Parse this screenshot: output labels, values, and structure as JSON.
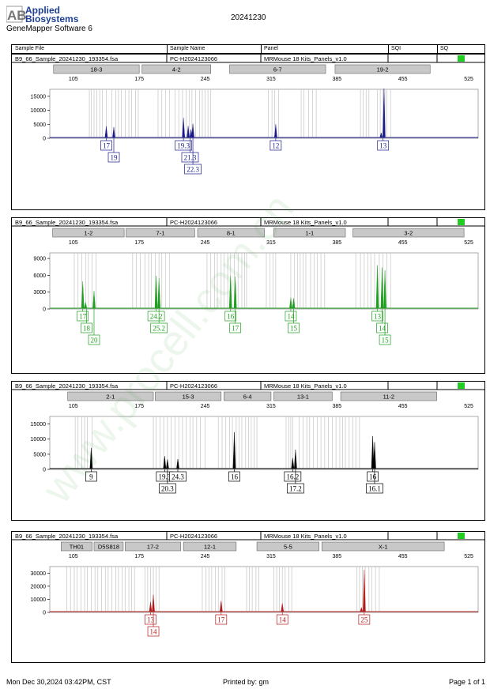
{
  "header": {
    "brand_line1": "Applied",
    "brand_line2": "Biosystems",
    "logo_mark": "AB",
    "software": "GeneMapper Software 6",
    "report_date": "20241230",
    "columns": [
      "Sample File",
      "Sample Name",
      "Panel",
      "SQI",
      "SQ"
    ]
  },
  "footer": {
    "printed_at": "Mon Dec 30,2024 03:42PM, CST",
    "printed_by": "Printed by: gm",
    "page": "Page 1 of 1"
  },
  "watermark": "www.procell.com.cn",
  "colors": {
    "blue": "#1a1a8c",
    "green": "#1e9e1e",
    "black": "#000000",
    "red": "#b31a1a",
    "quality": "#22cc22"
  },
  "chart_data": [
    {
      "type": "line",
      "color": "blue",
      "sample_file": "B9_66_Sample_20241230_193354.fsa",
      "sample_name": "PC-H2024123066",
      "panel": "MRMouse 18 Kits_Panels_v1.0",
      "xlim": [
        80,
        535
      ],
      "xticks": [
        105,
        175,
        245,
        315,
        385,
        455,
        525
      ],
      "ylim": [
        0,
        17500
      ],
      "yticks": [
        0,
        5000,
        10000,
        15000
      ],
      "markers": [
        {
          "label": "18-3",
          "start": 84,
          "end": 175
        },
        {
          "label": "4-2",
          "start": 178,
          "end": 251
        },
        {
          "label": "6-7",
          "start": 271,
          "end": 373
        },
        {
          "label": "19-2",
          "start": 383,
          "end": 484
        }
      ],
      "bins": [
        122,
        124,
        127,
        130,
        133,
        136,
        140,
        146,
        150,
        153,
        156,
        160,
        164,
        167,
        171,
        174,
        195,
        199,
        203,
        207,
        213,
        217,
        221,
        225,
        228,
        231,
        235,
        239,
        242,
        245,
        248,
        251,
        312,
        316,
        319,
        323,
        347,
        350,
        355,
        359,
        363,
        410,
        413,
        416,
        419,
        428,
        431,
        434,
        436,
        438,
        442
      ],
      "peaks": [
        {
          "x": 140,
          "y": 4300
        },
        {
          "x": 148,
          "y": 4000
        },
        {
          "x": 222,
          "y": 7300
        },
        {
          "x": 227,
          "y": 4400
        },
        {
          "x": 230,
          "y": 3200
        },
        {
          "x": 232,
          "y": 5200
        },
        {
          "x": 320,
          "y": 5000
        },
        {
          "x": 432,
          "y": 2000
        },
        {
          "x": 435,
          "y": 17800
        }
      ],
      "alleles": [
        {
          "label": "17",
          "x": 140,
          "row": 0
        },
        {
          "label": "19",
          "x": 148,
          "row": 1
        },
        {
          "label": "19.3",
          "x": 222,
          "row": 0
        },
        {
          "label": "21.3",
          "x": 229,
          "row": 1
        },
        {
          "label": "22.3",
          "x": 232,
          "row": 2
        },
        {
          "label": "12",
          "x": 320,
          "row": 0
        },
        {
          "label": "13",
          "x": 434,
          "row": 0
        }
      ]
    },
    {
      "type": "line",
      "color": "green",
      "sample_file": "B9_66_Sample_20241230_193354.fsa",
      "sample_name": "PC-H2024123066",
      "panel": "MRMouse 18 Kits_Panels_v1.0",
      "xlim": [
        80,
        535
      ],
      "xticks": [
        105,
        175,
        245,
        315,
        385,
        455,
        525
      ],
      "ylim": [
        0,
        10000
      ],
      "yticks": [
        0,
        3000,
        6000,
        9000
      ],
      "markers": [
        {
          "label": "1-2",
          "start": 83,
          "end": 159
        },
        {
          "label": "7-1",
          "start": 161,
          "end": 234
        },
        {
          "label": "8-1",
          "start": 237,
          "end": 308
        },
        {
          "label": "1-1",
          "start": 318,
          "end": 394
        },
        {
          "label": "3-2",
          "start": 402,
          "end": 520
        }
      ],
      "bins": [
        106,
        110,
        114,
        118,
        121,
        125,
        129,
        168,
        172,
        176,
        181,
        185,
        188,
        192,
        196,
        199,
        203,
        207,
        247,
        251,
        255,
        258,
        262,
        265,
        269,
        272,
        276,
        280,
        284,
        287,
        289,
        310,
        314,
        317,
        320,
        336,
        340,
        343,
        346,
        349,
        352,
        357,
        361,
        364,
        368,
        372,
        405,
        410,
        414,
        418,
        421,
        425,
        430,
        434,
        438,
        442
      ],
      "peaks": [
        {
          "x": 115,
          "y": 4900
        },
        {
          "x": 118,
          "y": 1200
        },
        {
          "x": 127,
          "y": 3200
        },
        {
          "x": 193,
          "y": 5900
        },
        {
          "x": 196,
          "y": 5500
        },
        {
          "x": 272,
          "y": 5900
        },
        {
          "x": 277,
          "y": 5800
        },
        {
          "x": 336,
          "y": 2000
        },
        {
          "x": 339,
          "y": 1900
        },
        {
          "x": 428,
          "y": 7800
        },
        {
          "x": 433,
          "y": 7400
        },
        {
          "x": 436,
          "y": 6900
        }
      ],
      "alleles": [
        {
          "label": "17",
          "x": 115,
          "row": 0
        },
        {
          "label": "18",
          "x": 119,
          "row": 1
        },
        {
          "label": "20",
          "x": 127,
          "row": 2
        },
        {
          "label": "24.2",
          "x": 193,
          "row": 0
        },
        {
          "label": "25.2",
          "x": 196,
          "row": 1
        },
        {
          "label": "16",
          "x": 272,
          "row": 0
        },
        {
          "label": "17",
          "x": 277,
          "row": 1
        },
        {
          "label": "14",
          "x": 336,
          "row": 0
        },
        {
          "label": "15",
          "x": 339,
          "row": 1
        },
        {
          "label": "13",
          "x": 428,
          "row": 0
        },
        {
          "label": "14",
          "x": 433,
          "row": 1
        },
        {
          "label": "15",
          "x": 436,
          "row": 2
        }
      ]
    },
    {
      "type": "line",
      "color": "black",
      "sample_file": "B9_66_Sample_20241230_193354.fsa",
      "sample_name": "PC-H2024123066",
      "panel": "MRMouse 18 Kits_Panels_v1.0",
      "xlim": [
        80,
        535
      ],
      "xticks": [
        105,
        175,
        245,
        315,
        385,
        455,
        525
      ],
      "ylim": [
        0,
        17500
      ],
      "yticks": [
        0,
        5000,
        10000,
        15000
      ],
      "markers": [
        {
          "label": "2-1",
          "start": 99,
          "end": 190
        },
        {
          "label": "15-3",
          "start": 192,
          "end": 262
        },
        {
          "label": "6-4",
          "start": 265,
          "end": 315
        },
        {
          "label": "13-1",
          "start": 318,
          "end": 380
        },
        {
          "label": "11-2",
          "start": 389,
          "end": 491
        }
      ],
      "bins": [
        107,
        110,
        114,
        117,
        120,
        125,
        190,
        193,
        197,
        201,
        205,
        209,
        213,
        217,
        221,
        225,
        229,
        232,
        236,
        240,
        245,
        259,
        263,
        267,
        271,
        274,
        278,
        281,
        284,
        288,
        291,
        294,
        297,
        300,
        331,
        334,
        336,
        338,
        345,
        349,
        353,
        356,
        360,
        364,
        368,
        372,
        376,
        380,
        384,
        388,
        391,
        394,
        398,
        402,
        405,
        409
      ],
      "peaks": [
        {
          "x": 124,
          "y": 7100
        },
        {
          "x": 202,
          "y": 4400
        },
        {
          "x": 205,
          "y": 3300
        },
        {
          "x": 216,
          "y": 3400
        },
        {
          "x": 276,
          "y": 12300
        },
        {
          "x": 338,
          "y": 3800
        },
        {
          "x": 341,
          "y": 6500
        },
        {
          "x": 423,
          "y": 11000
        },
        {
          "x": 425,
          "y": 9000
        }
      ],
      "alleles": [
        {
          "label": "9",
          "x": 124,
          "row": 0
        },
        {
          "label": "19.3",
          "x": 202,
          "row": 0
        },
        {
          "label": "20.3",
          "x": 205,
          "row": 1
        },
        {
          "label": "24.3",
          "x": 216,
          "row": 0
        },
        {
          "label": "16",
          "x": 276,
          "row": 0
        },
        {
          "label": "16.2",
          "x": 338,
          "row": 0
        },
        {
          "label": "17.2",
          "x": 341,
          "row": 1
        },
        {
          "label": "16",
          "x": 423,
          "row": 0
        },
        {
          "label": "16.1",
          "x": 425,
          "row": 1
        }
      ]
    },
    {
      "type": "line",
      "color": "red",
      "sample_file": "B9_66_Sample_20241230_193354.fsa",
      "sample_name": "PC-H2024123066",
      "panel": "MRMouse 18 Kits_Panels_v1.0",
      "xlim": [
        80,
        535
      ],
      "xticks": [
        105,
        175,
        245,
        315,
        385,
        455,
        525
      ],
      "ylim": [
        0,
        35000
      ],
      "yticks": [
        0,
        10000,
        20000,
        30000
      ],
      "markers": [
        {
          "label": "TH01",
          "start": 92,
          "end": 125
        },
        {
          "label": "D5S818",
          "start": 127,
          "end": 158
        },
        {
          "label": "17-2",
          "start": 160,
          "end": 219
        },
        {
          "label": "12-1",
          "start": 222,
          "end": 278
        },
        {
          "label": "5-5",
          "start": 300,
          "end": 366
        },
        {
          "label": "X-1",
          "start": 369,
          "end": 499
        }
      ],
      "bins": [
        98,
        102,
        106,
        109,
        113,
        117,
        120,
        124,
        128,
        131,
        135,
        139,
        142,
        146,
        150,
        153,
        157,
        160,
        164,
        167,
        170,
        181,
        184,
        187,
        190,
        193,
        196,
        242,
        246,
        249,
        252,
        256,
        259,
        263,
        266,
        289,
        292,
        295,
        299,
        302,
        318,
        321,
        324,
        327,
        330,
        334,
        337,
        406,
        409,
        412,
        415,
        419,
        422,
        426,
        430
      ],
      "peaks": [
        {
          "x": 187,
          "y": 8000
        },
        {
          "x": 190,
          "y": 13500
        },
        {
          "x": 262,
          "y": 8800
        },
        {
          "x": 327,
          "y": 7000
        },
        {
          "x": 411,
          "y": 3800
        },
        {
          "x": 414,
          "y": 32500
        }
      ],
      "alleles": [
        {
          "label": "13",
          "x": 187,
          "row": 0
        },
        {
          "label": "14",
          "x": 190,
          "row": 1
        },
        {
          "label": "17",
          "x": 262,
          "row": 0
        },
        {
          "label": "14",
          "x": 327,
          "row": 0
        },
        {
          "label": "25",
          "x": 414,
          "row": 0
        }
      ]
    }
  ]
}
